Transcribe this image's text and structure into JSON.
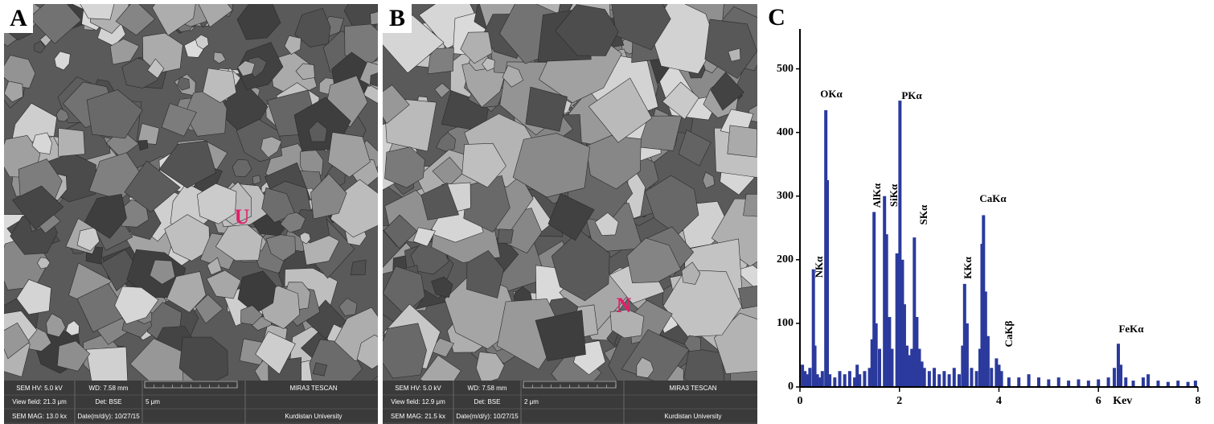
{
  "panels": [
    {
      "label": "A",
      "marker": "U",
      "info": [
        "SEM HV: 5.0 kV",
        "WD: 7.58 mm",
        "MIRA3 TESCAN",
        "View field: 21.3 μm",
        "Det: BSE",
        "5 μm",
        "SEM MAG: 13.0 kx",
        "Date(m/d/y): 10/27/15",
        "Kurdistan University"
      ]
    },
    {
      "label": "B",
      "marker": "N",
      "info": [
        "SEM HV: 5.0 kV",
        "WD: 7.58 mm",
        "MIRA3 TESCAN",
        "View field: 12.9 μm",
        "Det: BSE",
        "2 μm",
        "SEM MAG: 21.5 kx",
        "Date(m/d/y): 10/27/15",
        "Kurdistan University"
      ]
    }
  ],
  "chart_data": {
    "type": "bar",
    "panel_label": "C",
    "x_label": "Kev",
    "color": "#2b3a9c",
    "x": [
      0.05,
      0.1,
      0.15,
      0.2,
      0.27,
      0.3,
      0.35,
      0.4,
      0.45,
      0.52,
      0.55,
      0.6,
      0.7,
      0.8,
      0.9,
      1.0,
      1.1,
      1.15,
      1.2,
      1.3,
      1.4,
      1.45,
      1.49,
      1.53,
      1.6,
      1.7,
      1.74,
      1.8,
      1.85,
      1.95,
      2.01,
      2.06,
      2.1,
      2.15,
      2.2,
      2.25,
      2.3,
      2.35,
      2.4,
      2.45,
      2.5,
      2.6,
      2.7,
      2.8,
      2.9,
      3.0,
      3.1,
      3.2,
      3.27,
      3.31,
      3.36,
      3.45,
      3.55,
      3.62,
      3.66,
      3.69,
      3.73,
      3.78,
      3.85,
      3.95,
      4.0,
      4.05,
      4.2,
      4.4,
      4.6,
      4.8,
      5.0,
      5.2,
      5.4,
      5.6,
      5.8,
      6.0,
      6.2,
      6.32,
      6.4,
      6.45,
      6.55,
      6.7,
      6.9,
      7.0,
      7.2,
      7.4,
      7.6,
      7.8,
      7.95
    ],
    "values": [
      35,
      25,
      20,
      30,
      185,
      65,
      20,
      15,
      25,
      435,
      325,
      20,
      15,
      25,
      20,
      25,
      15,
      35,
      20,
      25,
      30,
      75,
      275,
      100,
      60,
      300,
      240,
      110,
      60,
      210,
      450,
      200,
      130,
      65,
      50,
      60,
      235,
      110,
      60,
      40,
      30,
      25,
      30,
      20,
      25,
      20,
      30,
      20,
      65,
      162,
      100,
      30,
      25,
      60,
      225,
      270,
      150,
      80,
      30,
      45,
      35,
      25,
      15,
      15,
      20,
      15,
      12,
      15,
      10,
      12,
      10,
      12,
      15,
      30,
      68,
      35,
      15,
      10,
      15,
      20,
      10,
      8,
      10,
      8,
      10
    ],
    "xlim": [
      0,
      8
    ],
    "xticks": [
      0,
      2,
      4,
      6,
      8
    ],
    "ylim": [
      0,
      550
    ],
    "yticks": [
      0,
      100,
      200,
      300,
      400,
      500
    ],
    "annotations": [
      "OKα",
      "PKα",
      "AlKα",
      "SiKα",
      "NKα",
      "SKα",
      "CaKα",
      "KKα",
      "CaKβ",
      "FeKα"
    ]
  }
}
